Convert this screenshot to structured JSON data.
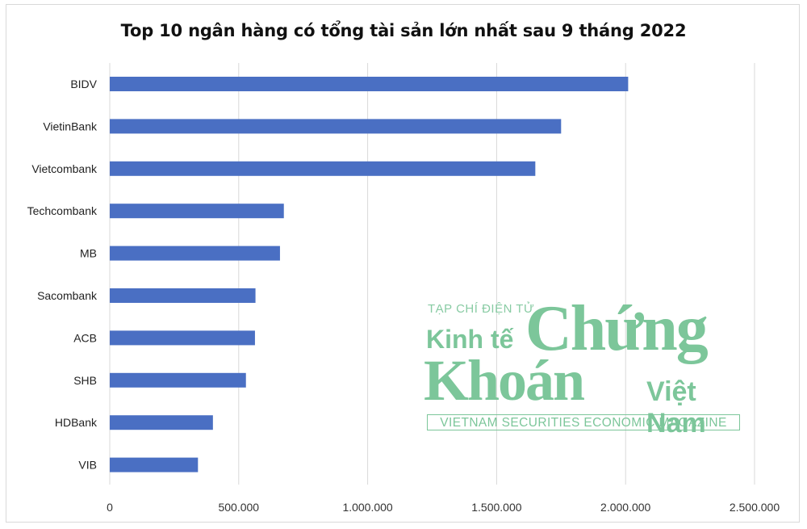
{
  "chart_data": {
    "type": "bar",
    "orientation": "horizontal",
    "title": "Top 10 ngân hàng có tổng tài sản lớn nhất sau 9 tháng 2022",
    "categories": [
      "BIDV",
      "VietinBank",
      "Vietcombank",
      "Techcombank",
      "MB",
      "Sacombank",
      "ACB",
      "SHB",
      "HDBank",
      "VIB"
    ],
    "values": [
      2010000,
      1750000,
      1650000,
      675000,
      660000,
      565000,
      563000,
      528000,
      400000,
      342000
    ],
    "xlim": [
      0,
      2500000
    ],
    "xticks": [
      0,
      500000,
      1000000,
      1500000,
      2000000,
      2500000
    ],
    "xtick_labels": [
      "0",
      "500.000",
      "1.000.000",
      "1.500.000",
      "2.000.000",
      "2.500.000"
    ],
    "xlabel": "",
    "ylabel": "",
    "grid": "vertical",
    "legend": "none",
    "bar_color": "#4a6fc3"
  },
  "watermark": {
    "line1": "TẠP CHÍ ĐIỆN TỬ",
    "kinh_te": "Kinh tế",
    "chung": "Chứng",
    "khoan": "Khoán",
    "viet_nam": "Việt Nam",
    "magazine": "VIETNAM SECURITIES ECONOMIC MAGAZINE",
    "color": "#7cc69a"
  }
}
